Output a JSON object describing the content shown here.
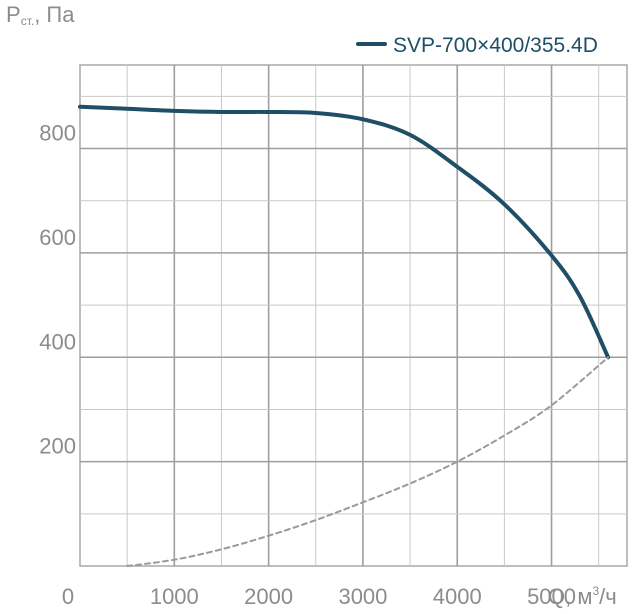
{
  "chart_data": {
    "type": "line",
    "ylabel_main": "P",
    "ylabel_sub": "ст.",
    "ylabel_unit": ", Па",
    "xlabel_main": "Q, м",
    "xlabel_sup": "3",
    "xlabel_tail": "/ч",
    "xlim": [
      0,
      5800
    ],
    "ylim": [
      0,
      960
    ],
    "xticks": [
      0,
      1000,
      2000,
      3000,
      4000,
      5000
    ],
    "xtick_labels": [
      "0",
      "1000",
      "2000",
      "3000",
      "4000",
      "5000"
    ],
    "yticks": [
      200,
      400,
      600,
      800
    ],
    "ytick_labels": [
      "200",
      "400",
      "600",
      "800"
    ],
    "grid": true,
    "legend_position": "top-right",
    "series": [
      {
        "name": "SVP-700×400/355.4D",
        "color": "#1f4e66",
        "style": "solid",
        "x": [
          0,
          500,
          1000,
          1500,
          2000,
          2500,
          3000,
          3500,
          4000,
          4500,
          5000,
          5300,
          5600
        ],
        "y": [
          880,
          876,
          872,
          870,
          870,
          868,
          856,
          826,
          765,
          693,
          595,
          517,
          400
        ]
      },
      {
        "name": "",
        "color": "#9a9a9a",
        "style": "dashed",
        "x": [
          500,
          1000,
          1500,
          2000,
          2500,
          3000,
          3500,
          4000,
          4500,
          5000,
          5600
        ],
        "y": [
          0,
          12,
          32,
          58,
          88,
          122,
          158,
          200,
          250,
          308,
          400
        ]
      }
    ]
  }
}
